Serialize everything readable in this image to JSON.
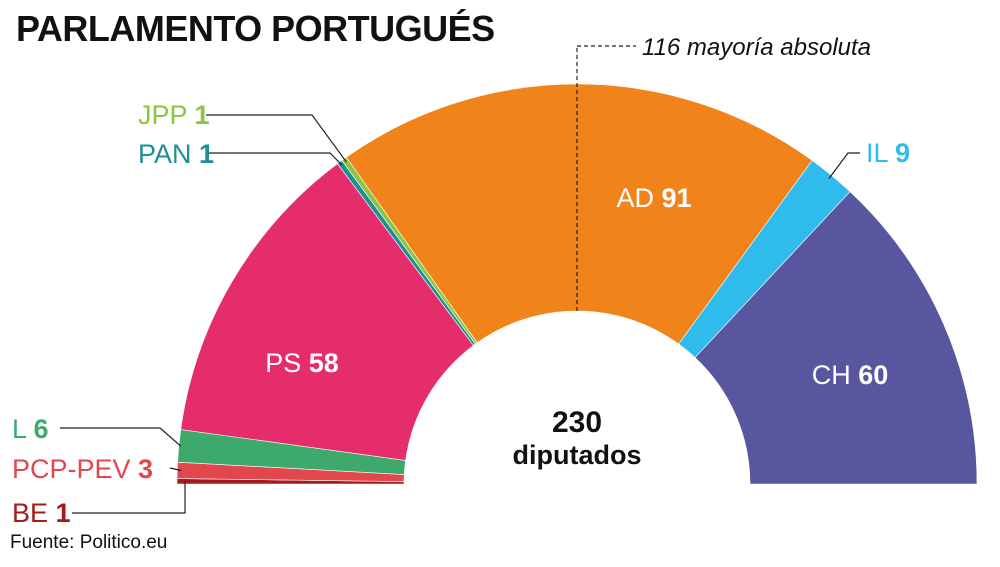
{
  "title": "PARLAMENTO PORTUGUÉS",
  "source": "Fuente: Politico.eu",
  "chart_data": {
    "type": "pie",
    "variant": "parliament-hemicycle",
    "total": 230,
    "total_label": "230",
    "total_sublabel": "diputados",
    "majority": 116,
    "majority_label": "116 mayoría absoluta",
    "parties": [
      {
        "name": "BE",
        "seats": 1,
        "color": "#a31b1b",
        "value_color": "#a31b1b"
      },
      {
        "name": "PCP-PEV",
        "seats": 3,
        "color": "#e2474e",
        "value_color": "#e2474e"
      },
      {
        "name": "L",
        "seats": 6,
        "color": "#3daa6c",
        "value_color": "#3daa6c"
      },
      {
        "name": "PS",
        "seats": 58,
        "color": "#e52d6c",
        "value_color": "#ffffff"
      },
      {
        "name": "PAN",
        "seats": 1,
        "color": "#1c8f97",
        "value_color": "#1c8f97"
      },
      {
        "name": "JPP",
        "seats": 1,
        "color": "#8cc63f",
        "value_color": "#8cc63f"
      },
      {
        "name": "AD",
        "seats": 91,
        "color": "#f0831a",
        "value_color": "#ffffff"
      },
      {
        "name": "IL",
        "seats": 9,
        "color": "#2fbcec",
        "value_color": "#2fbcec"
      },
      {
        "name": "CH",
        "seats": 60,
        "color": "#5956a0",
        "value_color": "#ffffff"
      }
    ]
  }
}
